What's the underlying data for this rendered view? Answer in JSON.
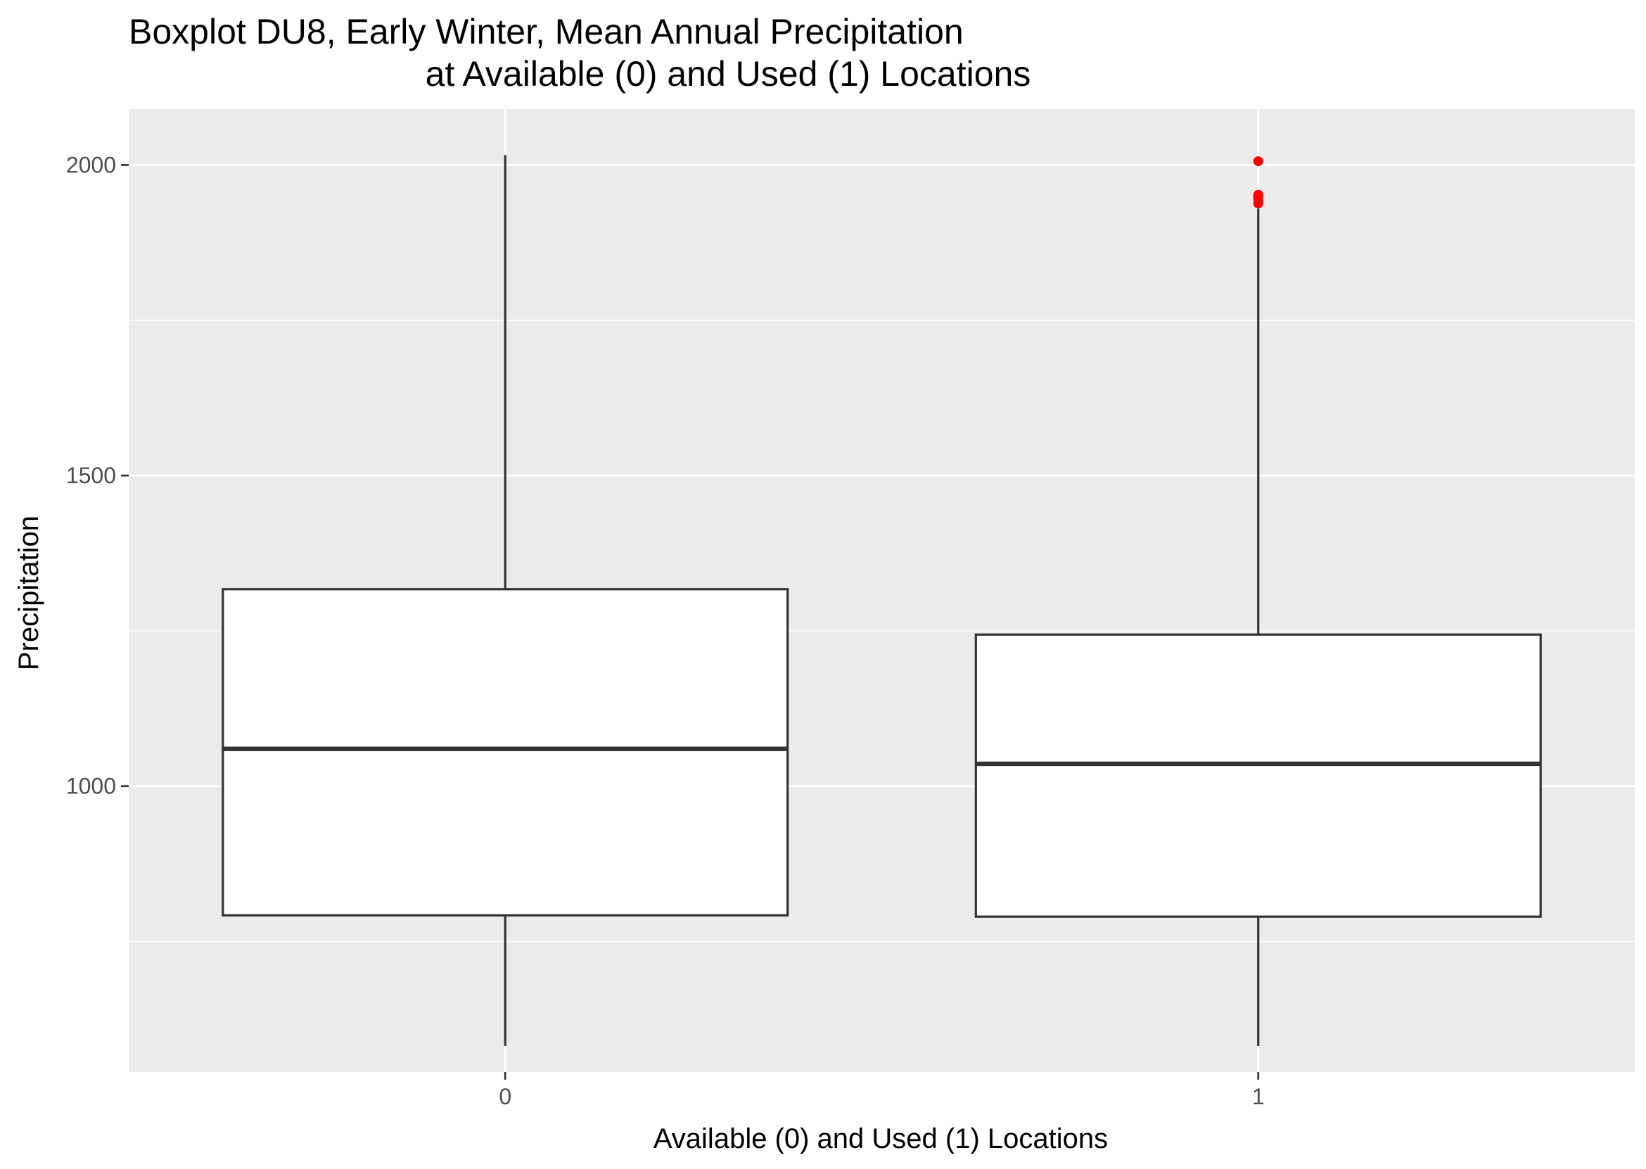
{
  "chart_data": {
    "type": "boxplot",
    "title": [
      "Boxplot DU8, Early Winter, Mean Annual Precipitation",
      "at Available (0) and Used (1) Locations"
    ],
    "xlabel": "Available (0) and Used (1) Locations",
    "ylabel": "Precipitation",
    "categories": [
      "0",
      "1"
    ],
    "y_ticks": [
      1000,
      1500,
      2000
    ],
    "ylim": [
      540,
      2090
    ],
    "grid": true,
    "boxes": [
      {
        "category": "0",
        "whisker_low": 582,
        "q1": 792,
        "median": 1060,
        "q3": 1317,
        "whisker_high": 2016,
        "outliers": []
      },
      {
        "category": "1",
        "whisker_low": 582,
        "q1": 790,
        "median": 1036,
        "q3": 1244,
        "whisker_high": 1930,
        "outliers": [
          1938,
          1944,
          1948,
          1952,
          2006
        ]
      }
    ],
    "colors": {
      "panel_background": "#ebebeb",
      "grid": "#ffffff",
      "box_fill": "#ffffff",
      "box_line": "#333333",
      "outlier": "#ff0000"
    }
  }
}
